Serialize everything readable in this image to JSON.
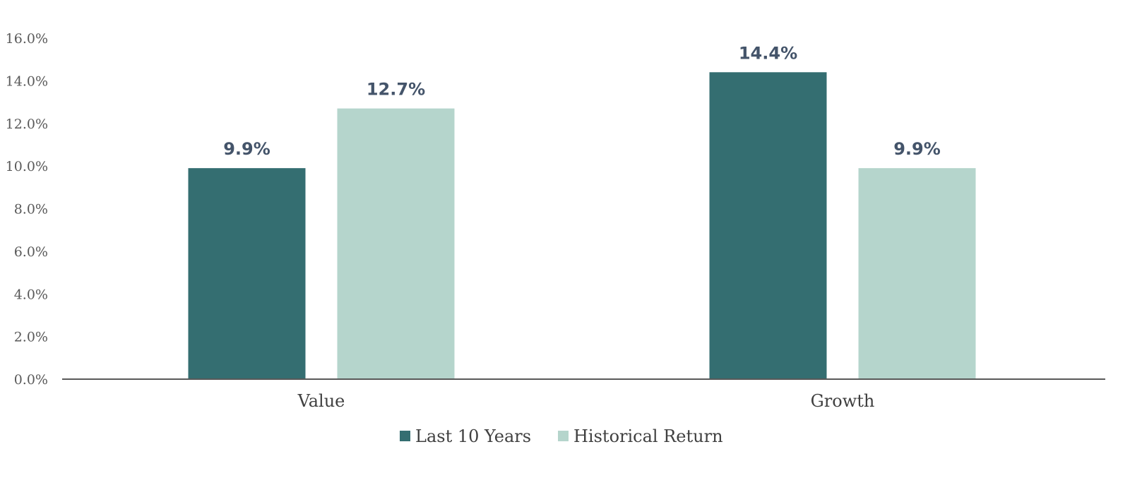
{
  "chart_data": {
    "type": "bar",
    "categories": [
      "Value",
      "Growth"
    ],
    "series": [
      {
        "name": "Last 10 Years",
        "values": [
          9.9,
          14.4
        ],
        "color": "#346e71"
      },
      {
        "name": "Historical Return",
        "values": [
          12.7,
          9.9
        ],
        "color": "#b5d5cc"
      }
    ],
    "data_labels": [
      [
        "9.9%",
        "14.4%"
      ],
      [
        "12.7%",
        "9.9%"
      ]
    ],
    "y_ticks": [
      "0.0%",
      "2.0%",
      "4.0%",
      "6.0%",
      "8.0%",
      "10.0%",
      "12.0%",
      "14.0%",
      "16.0%"
    ],
    "ylim": [
      0,
      16
    ],
    "y_unit": "%",
    "title": "",
    "xlabel": "",
    "ylabel": "",
    "grid": false,
    "legend_position": "bottom-center",
    "axis_color": "#595959"
  }
}
